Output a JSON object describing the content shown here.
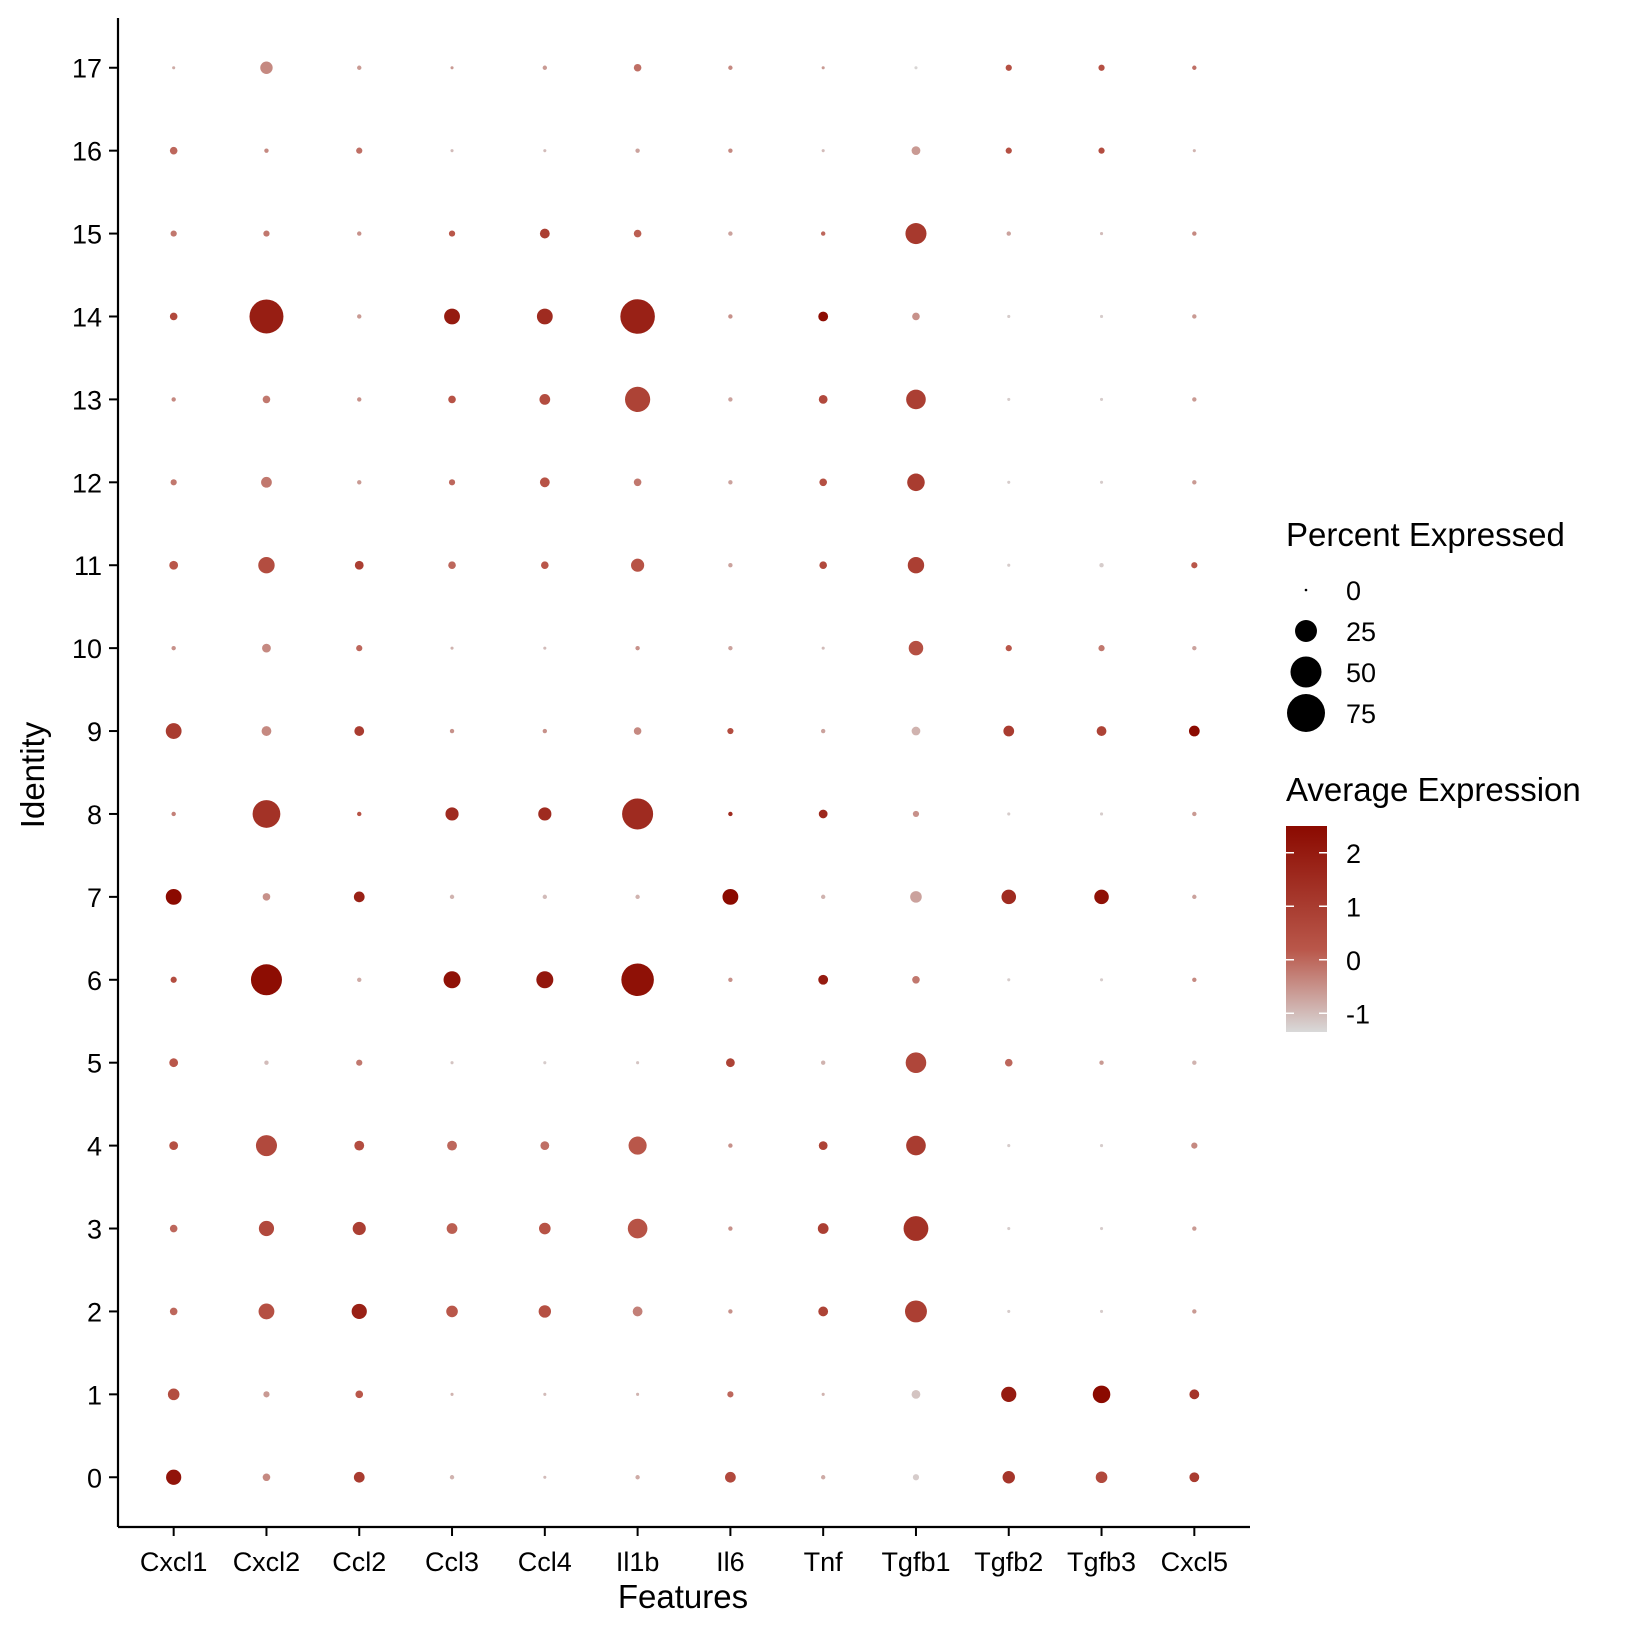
{
  "chart_data": {
    "type": "dot",
    "title": "",
    "xlabel": "Features",
    "ylabel": "Identity",
    "features": [
      "Cxcl1",
      "Cxcl2",
      "Ccl2",
      "Ccl3",
      "Ccl4",
      "Il1b",
      "Il6",
      "Tnf",
      "Tgfb1",
      "Tgfb2",
      "Tgfb3",
      "Cxcl5"
    ],
    "identities": [
      "0",
      "1",
      "2",
      "3",
      "4",
      "5",
      "6",
      "7",
      "8",
      "9",
      "10",
      "11",
      "12",
      "13",
      "14",
      "15",
      "16",
      "17"
    ],
    "percent_expressed": [
      [
        12,
        3,
        6,
        1,
        0.5,
        1,
        6,
        1,
        2,
        8,
        7,
        5
      ],
      [
        7,
        2,
        3,
        0.5,
        0.5,
        0.5,
        2,
        0.5,
        4,
        12,
        16,
        5
      ],
      [
        3,
        13,
        12,
        7,
        8,
        5,
        1,
        5,
        25,
        0.5,
        0.5,
        1
      ],
      [
        3,
        12,
        9,
        6,
        7,
        20,
        1,
        6,
        32,
        0.5,
        0.5,
        1
      ],
      [
        4,
        23,
        5,
        5,
        4,
        17,
        1,
        4,
        20,
        0.5,
        0.5,
        2
      ],
      [
        4,
        1,
        2,
        0.5,
        0.5,
        0.5,
        4,
        1,
        22,
        3,
        1,
        1
      ],
      [
        2,
        50,
        1,
        15,
        15,
        55,
        1,
        5,
        3,
        0.5,
        0.5,
        1
      ],
      [
        13,
        3,
        6,
        1,
        1,
        1,
        13,
        1,
        7,
        11,
        11,
        1
      ],
      [
        1,
        40,
        1,
        9,
        9,
        50,
        1,
        4,
        2,
        0.5,
        0.5,
        1
      ],
      [
        13,
        5,
        5,
        1,
        1,
        3,
        2,
        1,
        4,
        6,
        5,
        6
      ],
      [
        1,
        4,
        2,
        0.5,
        0.5,
        1,
        1,
        0.5,
        11,
        2,
        2,
        1
      ],
      [
        4,
        14,
        4,
        3,
        3,
        9,
        1,
        3,
        14,
        0.5,
        1,
        2
      ],
      [
        2,
        6,
        1,
        2,
        5,
        3,
        1,
        3,
        16,
        0.5,
        0.5,
        1
      ],
      [
        1,
        3,
        1,
        3,
        6,
        33,
        1,
        4,
        20,
        0.5,
        0.5,
        1
      ],
      [
        3,
        60,
        1,
        13,
        13,
        62,
        1,
        5,
        3,
        0.5,
        0.5,
        1
      ],
      [
        2,
        2,
        1,
        2,
        5,
        3,
        1,
        1,
        23,
        1,
        0.5,
        1
      ],
      [
        3,
        1,
        2,
        0.5,
        0.5,
        1,
        1,
        0.5,
        4,
        2,
        2,
        0.5
      ],
      [
        0.5,
        8,
        1,
        0.5,
        1,
        3,
        1,
        0.5,
        0.5,
        2,
        2,
        1
      ]
    ],
    "average_expression": [
      [
        2.2,
        -0.4,
        1.0,
        -0.9,
        -1.0,
        -0.8,
        0.6,
        -0.8,
        -1.2,
        1.2,
        0.6,
        1.0
      ],
      [
        0.5,
        -0.6,
        0.2,
        -0.9,
        -1.0,
        -0.9,
        0.0,
        -0.9,
        -1.1,
        2.0,
        2.5,
        1.2
      ],
      [
        0.0,
        0.4,
        1.8,
        0.2,
        0.4,
        -0.3,
        -0.5,
        0.8,
        0.9,
        -1.2,
        -1.2,
        -0.6
      ],
      [
        0.0,
        0.6,
        0.9,
        0.1,
        0.3,
        0.3,
        -0.5,
        0.9,
        1.3,
        -1.2,
        -1.2,
        -0.6
      ],
      [
        0.4,
        0.6,
        0.5,
        0.0,
        -0.1,
        0.2,
        -0.5,
        0.8,
        1.0,
        -1.2,
        -1.2,
        -0.4
      ],
      [
        0.2,
        -1.0,
        -0.2,
        -1.1,
        -1.2,
        -1.1,
        0.8,
        -0.9,
        0.7,
        0.0,
        -0.6,
        -0.9
      ],
      [
        0.5,
        2.4,
        -0.8,
        2.3,
        2.1,
        2.3,
        -0.5,
        2.0,
        -0.2,
        -1.2,
        -1.2,
        -0.4
      ],
      [
        2.5,
        -0.5,
        1.8,
        -0.9,
        -1.0,
        -0.9,
        2.5,
        -0.9,
        -0.7,
        1.5,
        2.3,
        -0.7
      ],
      [
        -0.3,
        1.3,
        0.3,
        1.5,
        1.5,
        1.5,
        1.5,
        1.6,
        -0.5,
        -1.2,
        -1.2,
        -0.6
      ],
      [
        1.0,
        -0.4,
        1.0,
        -0.5,
        -0.5,
        -0.4,
        0.5,
        -0.7,
        -0.9,
        1.0,
        0.8,
        2.5
      ],
      [
        -0.5,
        -0.4,
        0.0,
        -0.9,
        -1.0,
        -0.5,
        -0.7,
        -1.0,
        0.4,
        0.2,
        -0.2,
        -0.7
      ],
      [
        0.2,
        0.5,
        0.9,
        0.0,
        0.2,
        0.3,
        -0.7,
        0.6,
        0.9,
        -1.2,
        -1.2,
        0.2
      ],
      [
        -0.2,
        -0.2,
        -0.6,
        0.0,
        0.3,
        -0.2,
        -0.7,
        0.4,
        1.0,
        -1.2,
        -1.2,
        -0.6
      ],
      [
        -0.4,
        -0.2,
        -0.5,
        0.3,
        0.5,
        0.8,
        -0.7,
        0.6,
        0.9,
        -1.2,
        -1.2,
        -0.6
      ],
      [
        0.6,
        1.9,
        -0.6,
        2.0,
        1.5,
        1.8,
        -0.5,
        2.4,
        -0.5,
        -1.2,
        -1.2,
        -0.6
      ],
      [
        -0.2,
        -0.2,
        -0.5,
        0.2,
        0.9,
        0.1,
        -0.7,
        0.0,
        1.1,
        -0.7,
        -1.0,
        -0.4
      ],
      [
        0.0,
        -0.4,
        -0.1,
        -1.0,
        -1.0,
        -0.7,
        -0.4,
        -1.0,
        -0.6,
        0.4,
        0.5,
        -0.9
      ],
      [
        -0.8,
        -0.4,
        -0.6,
        -0.6,
        -0.6,
        -0.1,
        -0.4,
        -0.6,
        -1.3,
        0.4,
        0.4,
        -0.1
      ]
    ],
    "size_legend": {
      "title": "Percent Expressed",
      "breaks": [
        0,
        25,
        50,
        75
      ],
      "labels": [
        "0",
        "25",
        "50",
        "75"
      ]
    },
    "color_legend": {
      "title": "Average Expression",
      "range": [
        -1.35,
        2.5
      ],
      "breaks": [
        2,
        1,
        0,
        -1
      ],
      "labels": [
        "2",
        "1",
        "0",
        "-1"
      ],
      "low_color": "#d9d9d9",
      "high_color": "#8b0a00"
    },
    "x_range": [
      0.4,
      12.6
    ],
    "y_range": [
      -0.6,
      17.6
    ]
  }
}
